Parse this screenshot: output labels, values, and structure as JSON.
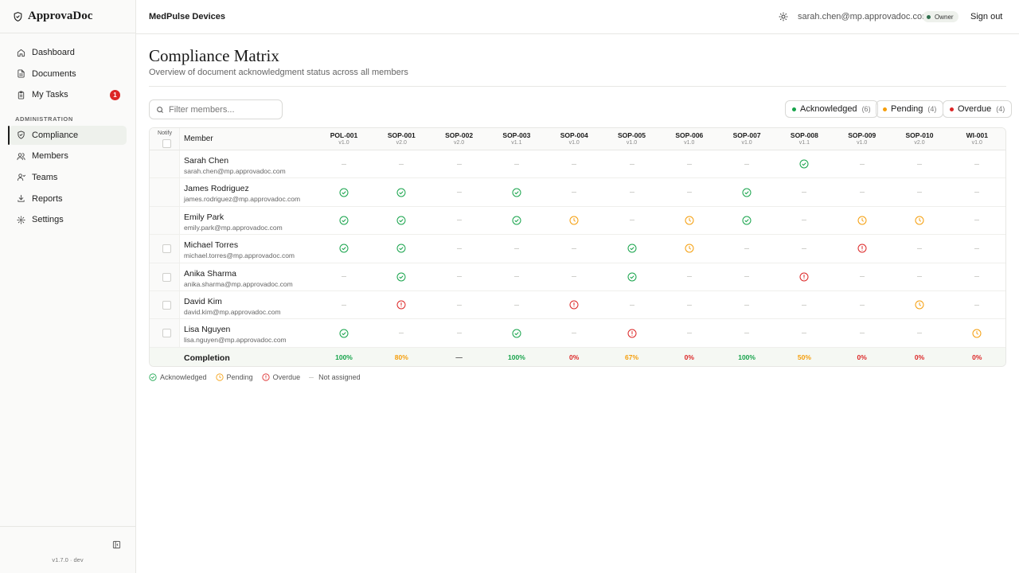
{
  "brand": {
    "name": "ApprovaDoc"
  },
  "sidebar": {
    "items": [
      {
        "label": "Dashboard",
        "icon": "home-icon"
      },
      {
        "label": "Documents",
        "icon": "file-icon"
      },
      {
        "label": "My Tasks",
        "icon": "clipboard-icon",
        "badge": "1"
      }
    ],
    "admin_label": "ADMINISTRATION",
    "admin_items": [
      {
        "label": "Compliance",
        "icon": "shield-check-icon",
        "active": true
      },
      {
        "label": "Members",
        "icon": "users-icon"
      },
      {
        "label": "Teams",
        "icon": "team-icon"
      },
      {
        "label": "Reports",
        "icon": "download-icon"
      },
      {
        "label": "Settings",
        "icon": "gear-icon"
      }
    ],
    "version": "v1.7.0 · dev"
  },
  "topbar": {
    "org": "MedPulse Devices",
    "email": "sarah.chen@mp.approvadoc.com",
    "role": "Owner",
    "signout": "Sign out"
  },
  "page": {
    "title": "Compliance Matrix",
    "subtitle": "Overview of document acknowledgment status across all members",
    "filter_placeholder": "Filter members..."
  },
  "stats": [
    {
      "label": "Acknowledged",
      "count": "(6)",
      "color": "#16a34a"
    },
    {
      "label": "Pending",
      "count": "(4)",
      "color": "#f59e0b"
    },
    {
      "label": "Overdue",
      "count": "(4)",
      "color": "#dc2626"
    }
  ],
  "colors": {
    "ack": "#16a34a",
    "pending": "#f59e0b",
    "overdue": "#dc2626",
    "none": "#cfcfcb"
  },
  "table": {
    "notify_header": "Notify",
    "member_header": "Member",
    "documents": [
      {
        "code": "POL-001",
        "version": "v1.0"
      },
      {
        "code": "SOP-001",
        "version": "v2.0"
      },
      {
        "code": "SOP-002",
        "version": "v2.0"
      },
      {
        "code": "SOP-003",
        "version": "v1.1"
      },
      {
        "code": "SOP-004",
        "version": "v1.0"
      },
      {
        "code": "SOP-005",
        "version": "v1.0"
      },
      {
        "code": "SOP-006",
        "version": "v1.0"
      },
      {
        "code": "SOP-007",
        "version": "v1.0"
      },
      {
        "code": "SOP-008",
        "version": "v1.1"
      },
      {
        "code": "SOP-009",
        "version": "v1.0"
      },
      {
        "code": "SOP-010",
        "version": "v2.0"
      },
      {
        "code": "WI-001",
        "version": "v1.0"
      }
    ],
    "members": [
      {
        "name": "Sarah Chen",
        "email": "sarah.chen@mp.approvadoc.com",
        "notify": false,
        "statuses": [
          "none",
          "none",
          "none",
          "none",
          "none",
          "none",
          "none",
          "none",
          "ack",
          "none",
          "none",
          "none"
        ]
      },
      {
        "name": "James Rodriguez",
        "email": "james.rodriguez@mp.approvadoc.com",
        "notify": false,
        "statuses": [
          "ack",
          "ack",
          "none",
          "ack",
          "none",
          "none",
          "none",
          "ack",
          "none",
          "none",
          "none",
          "none"
        ]
      },
      {
        "name": "Emily Park",
        "email": "emily.park@mp.approvadoc.com",
        "notify": false,
        "statuses": [
          "ack",
          "ack",
          "none",
          "ack",
          "pending",
          "none",
          "pending",
          "ack",
          "none",
          "pending",
          "pending",
          "none"
        ]
      },
      {
        "name": "Michael Torres",
        "email": "michael.torres@mp.approvadoc.com",
        "notify": true,
        "statuses": [
          "ack",
          "ack",
          "none",
          "none",
          "none",
          "ack",
          "pending",
          "none",
          "none",
          "overdue",
          "none",
          "none"
        ]
      },
      {
        "name": "Anika Sharma",
        "email": "anika.sharma@mp.approvadoc.com",
        "notify": true,
        "statuses": [
          "none",
          "ack",
          "none",
          "none",
          "none",
          "ack",
          "none",
          "none",
          "overdue",
          "none",
          "none",
          "none"
        ]
      },
      {
        "name": "David Kim",
        "email": "david.kim@mp.approvadoc.com",
        "notify": true,
        "statuses": [
          "none",
          "overdue",
          "none",
          "none",
          "overdue",
          "none",
          "none",
          "none",
          "none",
          "none",
          "pending",
          "none"
        ]
      },
      {
        "name": "Lisa Nguyen",
        "email": "lisa.nguyen@mp.approvadoc.com",
        "notify": true,
        "statuses": [
          "ack",
          "none",
          "none",
          "ack",
          "none",
          "overdue",
          "none",
          "none",
          "none",
          "none",
          "none",
          "pending"
        ]
      }
    ],
    "completion_label": "Completion",
    "completion": [
      {
        "value": "100%",
        "tone": "ack"
      },
      {
        "value": "80%",
        "tone": "pending"
      },
      {
        "value": "—",
        "tone": "none"
      },
      {
        "value": "100%",
        "tone": "ack"
      },
      {
        "value": "0%",
        "tone": "overdue"
      },
      {
        "value": "67%",
        "tone": "pending"
      },
      {
        "value": "0%",
        "tone": "overdue"
      },
      {
        "value": "100%",
        "tone": "ack"
      },
      {
        "value": "50%",
        "tone": "pending"
      },
      {
        "value": "0%",
        "tone": "overdue"
      },
      {
        "value": "0%",
        "tone": "overdue"
      },
      {
        "value": "0%",
        "tone": "overdue"
      }
    ]
  },
  "legend": [
    {
      "label": "Acknowledged",
      "status": "ack"
    },
    {
      "label": "Pending",
      "status": "pending"
    },
    {
      "label": "Overdue",
      "status": "overdue"
    },
    {
      "label": "Not assigned",
      "status": "none"
    }
  ]
}
